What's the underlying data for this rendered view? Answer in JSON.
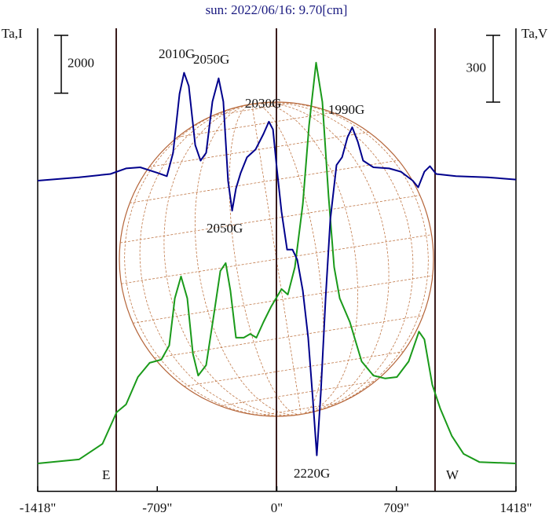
{
  "chart_data": {
    "type": "line",
    "title": "sun: 2022/06/16: 9.70[cm]",
    "ylabel": "Ta,I",
    "y2label": "Ta,V",
    "yscale_bar": 2000,
    "y2scale_bar": 300,
    "limb_labels": [
      "E",
      "W"
    ],
    "annotations": [
      "2010G",
      "2050G",
      "2030G",
      "1990G",
      "2050G",
      "2220G"
    ],
    "xlim": [
      -1418,
      1418
    ],
    "xticks": [
      {
        "value": -1418,
        "label": "-1418\""
      },
      {
        "value": -709,
        "label": "-709\""
      },
      {
        "value": 0,
        "label": "0\""
      },
      {
        "value": 709,
        "label": "709\""
      },
      {
        "value": 1418,
        "label": "1418\""
      }
    ],
    "ylim": [
      -1000,
      15000
    ],
    "y2lim": [
      -1400,
      680
    ],
    "series": [
      {
        "color": "#1a9a1a",
        "x": [
          -1418,
          -1173,
          -1034,
          -950,
          -894,
          -824,
          -754,
          -685,
          -638,
          -605,
          -568,
          -531,
          -498,
          -466,
          -419,
          -373,
          -335,
          -303,
          -275,
          -242,
          -196,
          -158,
          -121,
          -79,
          -33,
          28,
          65,
          107,
          154,
          191,
          233,
          270,
          307,
          340,
          373,
          433,
          503,
          573,
          643,
          712,
          782,
          843,
          875,
          922,
          969,
          1038,
          1108,
          1201,
          1418
        ],
        "values": [
          -50,
          90,
          630,
          1720,
          1990,
          2940,
          3430,
          3540,
          4030,
          5660,
          6420,
          5660,
          3750,
          2990,
          3350,
          5110,
          6610,
          6880,
          5930,
          4300,
          4300,
          4430,
          4300,
          4840,
          5380,
          5980,
          5790,
          6740,
          8920,
          11630,
          13810,
          12450,
          9190,
          6740,
          5660,
          4840,
          3480,
          2990,
          2890,
          2940,
          3480,
          4510,
          4240,
          2670,
          1850,
          900,
          280,
          0,
          -50
        ]
      },
      {
        "color": "#00008c",
        "axis": "y2",
        "x": [
          -1418,
          -1173,
          -987,
          -894,
          -810,
          -708,
          -652,
          -615,
          -577,
          -550,
          -522,
          -484,
          -452,
          -419,
          -382,
          -345,
          -317,
          -289,
          -265,
          -242,
          -214,
          -177,
          -126,
          -79,
          -47,
          -23,
          0,
          28,
          61,
          93,
          121,
          154,
          186,
          214,
          237,
          261,
          289,
          317,
          354,
          387,
          419,
          447,
          480,
          512,
          573,
          666,
          736,
          806,
          838,
          875,
          908,
          945,
          1062,
          1248,
          1418
        ],
        "values": [
          -5,
          10,
          25,
          50,
          55,
          30,
          15,
          120,
          385,
          480,
          420,
          155,
          85,
          120,
          350,
          455,
          350,
          -5,
          -140,
          -40,
          30,
          100,
          135,
          205,
          260,
          225,
          50,
          -145,
          -315,
          -315,
          -360,
          -500,
          -710,
          -995,
          -1240,
          -960,
          -535,
          -180,
          65,
          100,
          190,
          235,
          170,
          85,
          55,
          50,
          35,
          -5,
          -35,
          35,
          60,
          25,
          15,
          10,
          0
        ]
      }
    ]
  }
}
